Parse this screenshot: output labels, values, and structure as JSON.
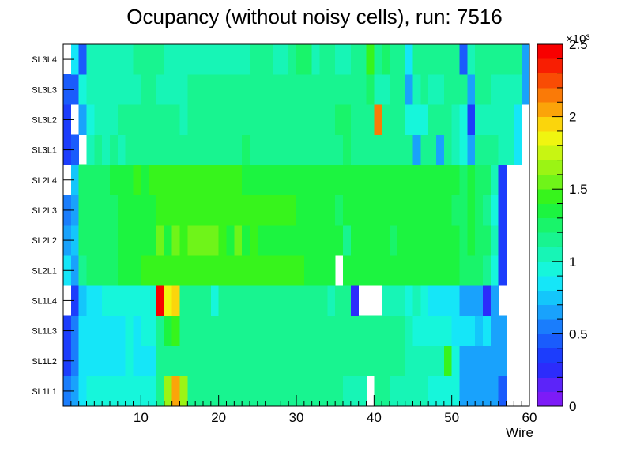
{
  "chart_data": {
    "type": "heatmap",
    "title": "Ocupancy (without noisy cells), run: 7516",
    "xlabel": "Wire",
    "ylabel": "",
    "xlim": [
      0,
      60
    ],
    "x_ticks": [
      "10",
      "20",
      "30",
      "40",
      "50",
      "60"
    ],
    "rows": [
      "SL1L1",
      "SL1L2",
      "SL1L3",
      "SL1L4",
      "SL2L1",
      "SL2L2",
      "SL2L3",
      "SL2L4",
      "SL3L1",
      "SL3L2",
      "SL3L3",
      "SL3L4"
    ],
    "zlim": [
      0,
      2500
    ],
    "z_exponent": "×10³",
    "z_ticks": [
      "0",
      "0.5",
      "1",
      "1.5",
      "2",
      "2.5"
    ],
    "z_tick_values": [
      0,
      500,
      1000,
      1500,
      2000,
      2500
    ],
    "palette": [
      "#7d1bf7",
      "#5c24f9",
      "#2c2cfb",
      "#1c3dfc",
      "#1a5cfc",
      "#1a7dfc",
      "#19a2fc",
      "#14c6fb",
      "#15e6f8",
      "#16f6db",
      "#17f5b6",
      "#18f490",
      "#19f46a",
      "#1cf440",
      "#37f41c",
      "#6ff419",
      "#9bf414",
      "#c8f512",
      "#f0f510",
      "#fbd50c",
      "#fba409",
      "#fa7a07",
      "#f94c04",
      "#f81e02",
      "#f80000"
    ],
    "values": [
      [
        500,
        600,
        850,
        900,
        900,
        900,
        900,
        900,
        900,
        950,
        950,
        950,
        1150,
        1650,
        2000,
        1650,
        1150,
        1150,
        1100,
        1150,
        1150,
        1150,
        1100,
        1100,
        1150,
        1100,
        1100,
        1100,
        1100,
        1100,
        1100,
        1100,
        1100,
        1100,
        1100,
        1100,
        1000,
        1000,
        1050,
        null,
        1100,
        1100,
        1050,
        1050,
        1000,
        1000,
        1000,
        950,
        950,
        950,
        950,
        600,
        600,
        600,
        600,
        600,
        450,
        null,
        null,
        null
      ],
      [
        350,
        550,
        800,
        850,
        850,
        850,
        850,
        850,
        950,
        850,
        850,
        850,
        1100,
        1100,
        1100,
        1150,
        1150,
        1150,
        1100,
        1100,
        1100,
        1100,
        1100,
        1100,
        1100,
        1100,
        1100,
        1100,
        1100,
        1100,
        1100,
        1100,
        1100,
        1100,
        1100,
        1100,
        1100,
        1100,
        1100,
        1100,
        1100,
        1100,
        1100,
        1100,
        1050,
        1050,
        1050,
        1050,
        1050,
        1450,
        950,
        600,
        600,
        600,
        600,
        600,
        600,
        null,
        null,
        null
      ],
      [
        350,
        550,
        800,
        850,
        850,
        850,
        850,
        850,
        950,
        850,
        900,
        900,
        1100,
        1300,
        1400,
        1150,
        1150,
        1150,
        1100,
        1150,
        1100,
        1100,
        1100,
        1100,
        1100,
        1100,
        1100,
        1100,
        1100,
        1100,
        1100,
        1100,
        1100,
        1100,
        1100,
        1100,
        1100,
        1100,
        1100,
        1100,
        1100,
        1100,
        1100,
        1100,
        1050,
        950,
        950,
        950,
        950,
        950,
        850,
        850,
        850,
        700,
        850,
        600,
        600,
        null,
        null,
        null
      ],
      [
        null,
        350,
        700,
        850,
        850,
        900,
        900,
        950,
        950,
        950,
        950,
        950,
        2500,
        1850,
        1900,
        1150,
        1150,
        1150,
        1100,
        950,
        1150,
        1100,
        1100,
        1100,
        1100,
        1100,
        1100,
        1100,
        1100,
        1100,
        1100,
        1100,
        1100,
        1100,
        1050,
        1100,
        1100,
        250,
        null,
        null,
        null,
        1050,
        1050,
        1050,
        950,
        1000,
        950,
        850,
        850,
        850,
        850,
        600,
        600,
        600,
        200,
        600,
        null,
        null,
        null,
        null
      ],
      [
        850,
        600,
        1100,
        1250,
        1250,
        1250,
        1250,
        1300,
        1300,
        1300,
        1450,
        1450,
        1450,
        1450,
        1450,
        1450,
        1450,
        1400,
        1400,
        1400,
        1400,
        1400,
        1400,
        1450,
        1450,
        1400,
        1450,
        1450,
        1450,
        1450,
        1400,
        1350,
        1350,
        1350,
        1350,
        null,
        1350,
        1350,
        1350,
        1350,
        1350,
        1300,
        1350,
        1350,
        1350,
        1350,
        1300,
        1300,
        1300,
        1300,
        1300,
        1250,
        1250,
        1250,
        1150,
        950,
        350,
        null,
        null,
        null
      ],
      [
        600,
        700,
        1200,
        1250,
        1250,
        1250,
        1250,
        1300,
        1300,
        1300,
        1300,
        1300,
        1500,
        1300,
        1500,
        1400,
        1500,
        1500,
        1500,
        1500,
        1400,
        1350,
        1500,
        1350,
        1450,
        1350,
        1350,
        1350,
        1350,
        1350,
        1350,
        1350,
        1350,
        1350,
        1350,
        1300,
        1100,
        1350,
        1300,
        1300,
        1300,
        1300,
        1250,
        1300,
        1300,
        1300,
        1300,
        1300,
        1300,
        1300,
        1300,
        1250,
        1300,
        1200,
        1200,
        1050,
        350,
        null,
        null,
        null
      ],
      [
        500,
        650,
        1200,
        1250,
        1250,
        1250,
        1250,
        1300,
        1300,
        1350,
        1300,
        1350,
        1400,
        1400,
        1400,
        1400,
        1400,
        1400,
        1400,
        1400,
        1400,
        1450,
        1400,
        1400,
        1400,
        1400,
        1400,
        1400,
        1400,
        1400,
        1350,
        1350,
        1350,
        1350,
        1350,
        1250,
        1350,
        1350,
        1300,
        1350,
        1300,
        1300,
        1300,
        1300,
        1300,
        1300,
        1300,
        1300,
        1300,
        1300,
        1250,
        1250,
        1300,
        1250,
        1150,
        950,
        350,
        null,
        null,
        null
      ],
      [
        null,
        700,
        1250,
        1250,
        1250,
        1250,
        1300,
        1300,
        1350,
        1400,
        1350,
        1450,
        1450,
        1450,
        1450,
        1450,
        1450,
        1450,
        1450,
        1450,
        1450,
        1450,
        1450,
        1300,
        1350,
        1350,
        1350,
        1350,
        1300,
        1300,
        1300,
        1300,
        1300,
        1300,
        1300,
        1300,
        1300,
        1300,
        1300,
        1300,
        1300,
        1300,
        1300,
        1300,
        1300,
        1300,
        1300,
        1300,
        1300,
        1300,
        1300,
        1250,
        1300,
        1250,
        1250,
        1050,
        350,
        null,
        null,
        null
      ],
      [
        350,
        400,
        null,
        1000,
        1100,
        1050,
        1100,
        1050,
        1100,
        1100,
        1100,
        1100,
        1100,
        1100,
        1150,
        1150,
        1150,
        1150,
        1150,
        1150,
        1150,
        1150,
        1150,
        1200,
        1150,
        1150,
        1100,
        1100,
        1100,
        1100,
        1100,
        1100,
        1100,
        1150,
        1150,
        1150,
        1200,
        1150,
        1150,
        1150,
        1150,
        1150,
        1150,
        1100,
        1100,
        600,
        1100,
        1150,
        600,
        1150,
        1000,
        900,
        600,
        1100,
        1100,
        1100,
        1050,
        1050,
        850,
        null
      ],
      [
        350,
        null,
        600,
        900,
        1000,
        1000,
        1050,
        1100,
        1100,
        1100,
        1100,
        1100,
        1100,
        1100,
        1100,
        1050,
        1100,
        1150,
        1150,
        1150,
        1150,
        1150,
        1150,
        1150,
        1150,
        1150,
        1150,
        1150,
        1150,
        1150,
        1150,
        1150,
        1150,
        1150,
        1150,
        1250,
        1250,
        1150,
        1150,
        1150,
        2100,
        1150,
        1150,
        1150,
        950,
        950,
        950,
        1100,
        1100,
        1100,
        1050,
        950,
        350,
        1050,
        1050,
        1050,
        1050,
        1050,
        850,
        null
      ],
      [
        400,
        400,
        900,
        1050,
        1050,
        1050,
        1050,
        1050,
        1050,
        1050,
        1100,
        1100,
        1050,
        1050,
        1050,
        1050,
        1100,
        1100,
        1100,
        1100,
        1100,
        1100,
        1100,
        1100,
        1100,
        1100,
        1100,
        1100,
        1100,
        1100,
        1100,
        1100,
        1100,
        1100,
        1100,
        1100,
        1100,
        1100,
        1150,
        1250,
        1050,
        1050,
        1100,
        1100,
        600,
        1050,
        1150,
        1050,
        1050,
        1100,
        1150,
        1100,
        600,
        1100,
        1100,
        1050,
        1050,
        1050,
        1050,
        650
      ],
      [
        null,
        850,
        450,
        1050,
        1050,
        1050,
        1050,
        1050,
        1050,
        1100,
        1100,
        1100,
        1100,
        1050,
        1050,
        1050,
        1050,
        1050,
        1050,
        1050,
        1050,
        1050,
        1050,
        1050,
        1150,
        1100,
        1100,
        1050,
        1050,
        1150,
        1200,
        1250,
        1050,
        1100,
        1150,
        1050,
        1050,
        1150,
        1100,
        1400,
        1150,
        1250,
        1150,
        1150,
        850,
        1100,
        1100,
        1150,
        1100,
        1150,
        1100,
        400,
        1000,
        1100,
        1100,
        1100,
        1100,
        1100,
        1100,
        600
      ]
    ]
  }
}
